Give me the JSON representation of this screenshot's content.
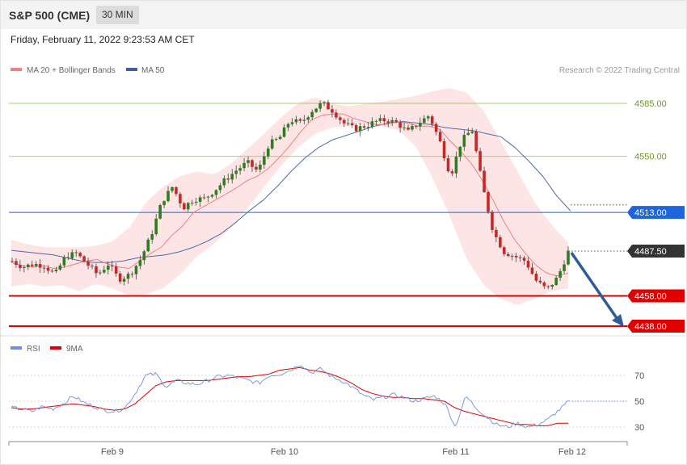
{
  "header": {
    "title": "S&P 500 (CME)",
    "timeframe": "30 MIN",
    "datetime": "Friday, February 11, 2022 9:23:53 AM CET"
  },
  "credit": "Research © 2022 Trading Central",
  "colors": {
    "candle_up": "#2e7d1e",
    "candle_down": "#c62828",
    "resistance": "#8bc34a",
    "pivot": "#1e64dc",
    "support": "#e00000",
    "ma20": "#ef8080",
    "ma50": "#4a6aa8",
    "bands": "#fde0e0",
    "arrow": "#2f5b9a",
    "rsi": "#6f8fe0",
    "rsi_ma": "#e00000"
  },
  "chart_data": [
    {
      "type": "candlestick",
      "legend": [
        {
          "label": "MA 20 + Bollinger Bands",
          "color": "#ef8080"
        },
        {
          "label": "MA 50",
          "color": "#3f5fa0"
        }
      ],
      "ylim": [
        4433,
        4600
      ],
      "x_ticks": [
        "Feb 9",
        "Feb 10",
        "Feb 11",
        "Feb 12"
      ],
      "levels": [
        {
          "value": 4585.0,
          "label": "4585.00",
          "kind": "resistance"
        },
        {
          "value": 4550.0,
          "label": "4550.00",
          "kind": "resistance"
        },
        {
          "value": 4513.0,
          "label": "4513.00",
          "kind": "pivot"
        },
        {
          "value": 4487.5,
          "label": "4487.50",
          "kind": "last"
        },
        {
          "value": 4458.0,
          "label": "4458.00",
          "kind": "support"
        },
        {
          "value": 4438.0,
          "label": "4438.00",
          "kind": "support"
        }
      ],
      "close_keypoints": [
        4481,
        4477,
        4479,
        4478,
        4472,
        4484,
        4486,
        4479,
        4472,
        4479,
        4469,
        4472,
        4482,
        4498,
        4520,
        4530,
        4516,
        4522,
        4522,
        4528,
        4535,
        4541,
        4546,
        4540,
        4558,
        4562,
        4574,
        4572,
        4580,
        4585,
        4580,
        4572,
        4568,
        4570,
        4573,
        4574,
        4572,
        4566,
        4572,
        4577,
        4560,
        4537,
        4560,
        4568,
        4530,
        4500,
        4487,
        4484,
        4481,
        4468,
        4462,
        4470,
        4487
      ],
      "ma20_keypoints": [
        4480,
        4478,
        4477,
        4478,
        4476,
        4477,
        4479,
        4481,
        4482,
        4479,
        4477,
        4476,
        4481,
        4486,
        4490,
        4498,
        4504,
        4513,
        4517,
        4521,
        4525,
        4529,
        4534,
        4537,
        4542,
        4549,
        4557,
        4566,
        4574,
        4577,
        4578,
        4578,
        4575,
        4573,
        4571,
        4571,
        4573,
        4572,
        4570,
        4570,
        4568,
        4560,
        4553,
        4545,
        4534,
        4521,
        4507,
        4495,
        4486,
        4478,
        4473,
        4471,
        4473
      ],
      "ma50_keypoints": [
        4488,
        4487,
        4486,
        4485,
        4483,
        4481,
        4480,
        4480,
        4481,
        4483,
        4484,
        4485,
        4487,
        4490,
        4494,
        4499,
        4506,
        4514,
        4521,
        4530,
        4540,
        4549,
        4556,
        4561,
        4564,
        4567,
        4570,
        4572,
        4573,
        4572,
        4571,
        4569,
        4568,
        4567,
        4565,
        4563,
        4556,
        4547,
        4537,
        4524,
        4514
      ],
      "bb_upper_keypoints": [
        4495,
        4492,
        4490,
        4490,
        4490,
        4491,
        4494,
        4503,
        4520,
        4530,
        4537,
        4540,
        4538,
        4545,
        4555,
        4565,
        4576,
        4585,
        4589,
        4585,
        4583,
        4585,
        4586,
        4588,
        4590,
        4593,
        4595,
        4592,
        4580,
        4560,
        4540,
        4520,
        4505,
        4493
      ],
      "bb_lower_keypoints": [
        4464,
        4466,
        4464,
        4465,
        4461,
        4466,
        4463,
        4458,
        4459,
        4463,
        4472,
        4484,
        4492,
        4503,
        4516,
        4530,
        4544,
        4556,
        4565,
        4569,
        4570,
        4571,
        4570,
        4567,
        4556,
        4535,
        4510,
        4482,
        4465,
        4456,
        4452,
        4456,
        4461,
        4463
      ]
    },
    {
      "type": "line",
      "legend": [
        {
          "label": "RSI",
          "color": "#6f8fe0"
        },
        {
          "label": "9MA",
          "color": "#e00000"
        }
      ],
      "ylim": [
        10,
        90
      ],
      "y_ticks": [
        70,
        50,
        30
      ],
      "rsi_keypoints": [
        45,
        44,
        42,
        46,
        44,
        48,
        54,
        49,
        46,
        43,
        42,
        45,
        56,
        70,
        71,
        61,
        66,
        64,
        63,
        66,
        69,
        70,
        68,
        66,
        64,
        70,
        71,
        74,
        79,
        72,
        75,
        69,
        66,
        61,
        55,
        51,
        53,
        55,
        53,
        50,
        52,
        54,
        48,
        30,
        54,
        45,
        38,
        32,
        30,
        33,
        30,
        32,
        36,
        43,
        50
      ],
      "rsi_ma_keypoints": [
        45,
        44,
        44,
        45,
        46,
        47,
        48,
        47,
        46,
        44,
        43,
        44,
        48,
        55,
        62,
        65,
        66,
        66,
        66,
        66,
        67,
        68,
        69,
        69,
        70,
        71,
        74,
        75,
        76,
        74,
        73,
        71,
        68,
        64,
        59,
        56,
        54,
        53,
        53,
        52,
        52,
        51,
        50,
        45,
        42,
        40,
        38,
        36,
        34,
        32,
        32,
        31,
        31,
        33,
        33
      ]
    }
  ]
}
